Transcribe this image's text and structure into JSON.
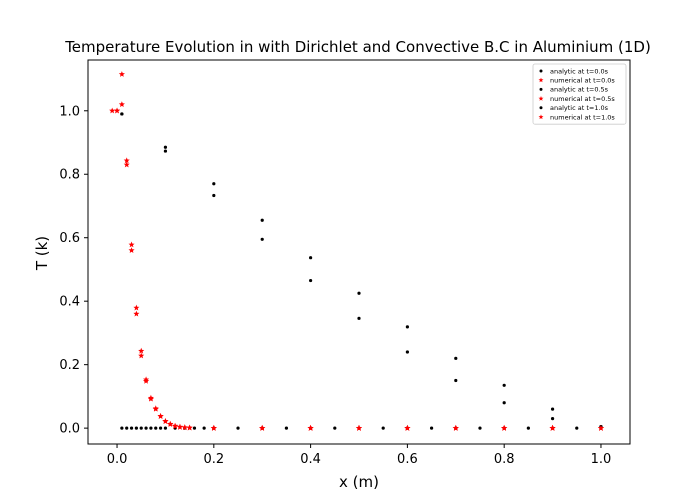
{
  "chart_data": {
    "type": "scatter",
    "title": "Temperature Evolution in with Dirichlet and Convective B.C in Aluminium (1D)",
    "xlabel": "x (m)",
    "ylabel": "T (k)",
    "xlim": [
      -0.06,
      1.06
    ],
    "ylim": [
      -0.05,
      1.16
    ],
    "xticks": [
      0.0,
      0.2,
      0.4,
      0.6,
      0.8,
      1.0
    ],
    "xtick_labels": [
      "0.0",
      "0.2",
      "0.4",
      "0.6",
      "0.8",
      "1.0"
    ],
    "yticks": [
      0.0,
      0.2,
      0.4,
      0.6,
      0.8,
      1.0
    ],
    "ytick_labels": [
      "0.0",
      "0.2",
      "0.4",
      "0.6",
      "0.8",
      "1.0"
    ],
    "grid": false,
    "legend_position": "top-right",
    "series": [
      {
        "name": "analytic at t=0.0s",
        "color": "#000000",
        "marker": "dot",
        "x": [
          0.01,
          0.02,
          0.03,
          0.04,
          0.05,
          0.06,
          0.07,
          0.08,
          0.09,
          0.1,
          0.12,
          0.14,
          0.16,
          0.18,
          0.2,
          0.25,
          0.3,
          0.35,
          0.4,
          0.45,
          0.5,
          0.55,
          0.6,
          0.65,
          0.7,
          0.75,
          0.8,
          0.85,
          0.9,
          0.95,
          1.0
        ],
        "y": [
          0,
          0,
          0,
          0,
          0,
          0,
          0,
          0,
          0,
          0,
          0,
          0,
          0,
          0,
          0,
          0,
          0,
          0,
          0,
          0,
          0,
          0,
          0,
          0,
          0,
          0,
          0,
          0,
          0,
          0,
          0
        ]
      },
      {
        "name": "numerical at t=0.0s",
        "color": "#ff0000",
        "marker": "star",
        "x": [
          0.0,
          0.01,
          0.02,
          0.03,
          0.04,
          0.05,
          0.06,
          0.07,
          0.08,
          0.09,
          0.1,
          0.11,
          0.12,
          0.13,
          0.14,
          0.15,
          0.2,
          0.3,
          0.4,
          0.5,
          0.6,
          0.7,
          0.8,
          0.9,
          1.0
        ],
        "y": [
          1.0,
          1.115,
          0.843,
          0.578,
          0.379,
          0.243,
          0.153,
          0.095,
          0.062,
          0.038,
          0.022,
          0.013,
          0.007,
          0.004,
          0.002,
          0.001,
          0.0,
          0.0,
          0.0,
          0.0,
          0.0,
          0.0,
          0.0,
          0.0,
          0.0
        ]
      },
      {
        "name": "analytic at t=0.5s",
        "color": "#000000",
        "marker": "dot",
        "x": [
          0.01,
          0.1,
          0.2,
          0.3,
          0.4,
          0.5,
          0.6,
          0.7,
          0.8,
          0.9,
          1.0
        ],
        "y": [
          0.99,
          0.873,
          0.733,
          0.595,
          0.465,
          0.346,
          0.24,
          0.15,
          0.08,
          0.03,
          0.005
        ]
      },
      {
        "name": "numerical at t=0.5s",
        "color": "#ff0000",
        "marker": "star",
        "x": [
          -0.01,
          0.0,
          0.01,
          0.02,
          0.03,
          0.04,
          0.05,
          0.06,
          0.07,
          0.08,
          0.09,
          0.1,
          0.11,
          0.12,
          0.13,
          0.14,
          0.15,
          0.2,
          0.3,
          0.4,
          0.5,
          0.6,
          0.7,
          0.8,
          0.9,
          1.0
        ],
        "y": [
          1.0,
          1.0,
          1.02,
          0.83,
          0.56,
          0.36,
          0.228,
          0.148,
          0.092,
          0.06,
          0.037,
          0.021,
          0.012,
          0.006,
          0.003,
          0.002,
          0.001,
          0.0,
          0.0,
          0.0,
          0.0,
          0.0,
          0.0,
          0.0,
          0.0,
          0.0
        ]
      },
      {
        "name": "analytic at t=1.0s",
        "color": "#000000",
        "marker": "dot",
        "x": [
          0.01,
          0.1,
          0.2,
          0.3,
          0.4,
          0.5,
          0.6,
          0.7,
          0.8,
          0.9,
          1.0
        ],
        "y": [
          0.99,
          0.885,
          0.77,
          0.655,
          0.537,
          0.425,
          0.319,
          0.22,
          0.135,
          0.06,
          0.005
        ]
      },
      {
        "name": "numerical at t=1.0s",
        "color": "#ff0000",
        "marker": "star",
        "x": [
          0.2,
          0.3,
          0.4,
          0.5,
          0.6,
          0.7,
          0.8,
          0.9,
          1.0
        ],
        "y": [
          0.0,
          0.0,
          0.0,
          0.0,
          0.0,
          0.0,
          0.0,
          0.0,
          0.0
        ]
      }
    ]
  }
}
